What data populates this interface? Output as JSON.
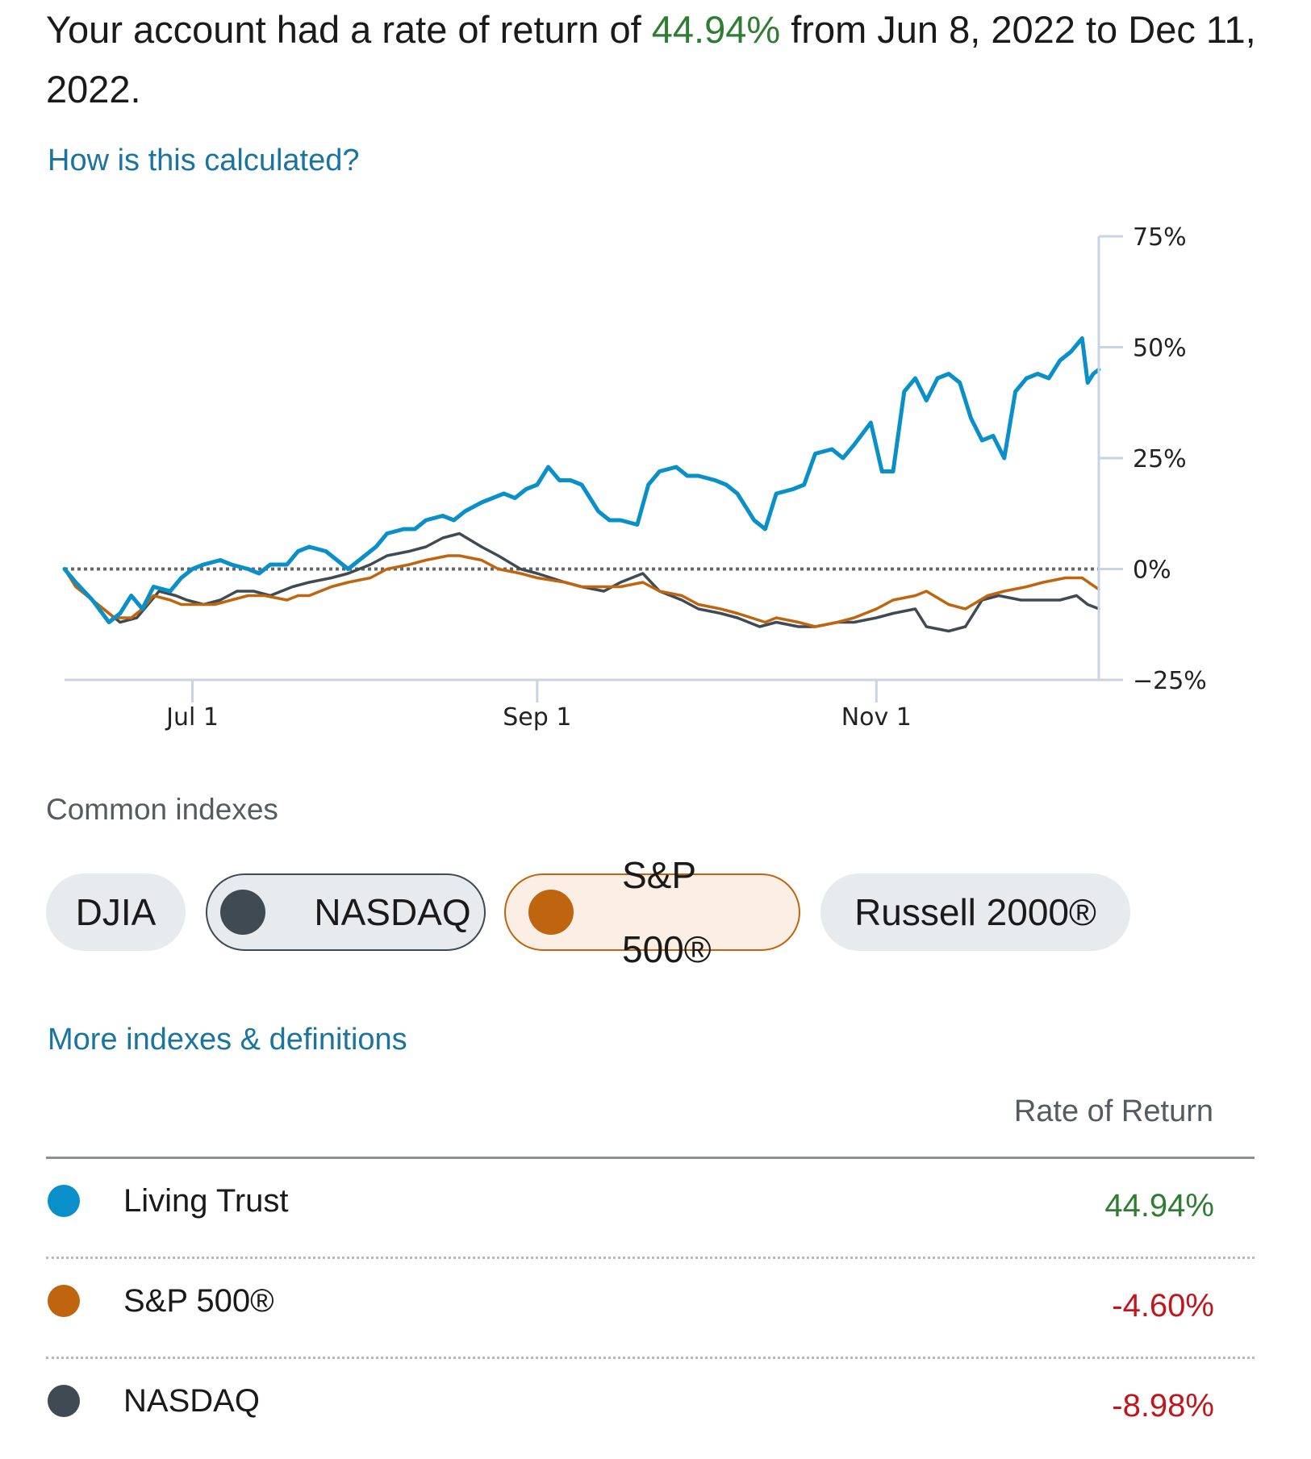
{
  "summary": {
    "prefix": "Your account had a rate of return of ",
    "rate": "44.94%",
    "suffix": " from Jun 8, 2022 to Dec 11, 2022."
  },
  "links": {
    "calculation": "How is this calculated?",
    "more_indexes": "More indexes & definitions"
  },
  "colors": {
    "account": "#0a90c9",
    "sp500": "#c0650f",
    "nasdaq": "#3f4a53",
    "positive": "#2f7d32",
    "negative": "#c2151c",
    "link": "#1a74a0"
  },
  "chart_data": {
    "type": "line",
    "x_ticks": [
      "Jul 1",
      "Sep 1",
      "Nov 1"
    ],
    "y_ticks": [
      "75%",
      "50%",
      "25%",
      "0%",
      "−25%"
    ],
    "ylim": [
      -25,
      75
    ],
    "xlim": [
      "2022-06-08",
      "2022-12-11"
    ],
    "baseline": 0,
    "series": [
      {
        "name": "Living Trust",
        "color": "#0a90c9",
        "points": [
          [
            "2022-06-08",
            0
          ],
          [
            "2022-06-10",
            -3
          ],
          [
            "2022-06-13",
            -7
          ],
          [
            "2022-06-16",
            -12
          ],
          [
            "2022-06-18",
            -10
          ],
          [
            "2022-06-20",
            -6
          ],
          [
            "2022-06-22",
            -9
          ],
          [
            "2022-06-24",
            -4
          ],
          [
            "2022-06-27",
            -5
          ],
          [
            "2022-06-29",
            -2
          ],
          [
            "2022-07-01",
            0
          ],
          [
            "2022-07-03",
            1
          ],
          [
            "2022-07-06",
            2
          ],
          [
            "2022-07-08",
            1
          ],
          [
            "2022-07-11",
            0
          ],
          [
            "2022-07-13",
            -1
          ],
          [
            "2022-07-15",
            1
          ],
          [
            "2022-07-18",
            1
          ],
          [
            "2022-07-20",
            4
          ],
          [
            "2022-07-22",
            5
          ],
          [
            "2022-07-25",
            4
          ],
          [
            "2022-07-27",
            2
          ],
          [
            "2022-07-29",
            0
          ],
          [
            "2022-08-01",
            3
          ],
          [
            "2022-08-03",
            5
          ],
          [
            "2022-08-05",
            8
          ],
          [
            "2022-08-08",
            9
          ],
          [
            "2022-08-10",
            9
          ],
          [
            "2022-08-12",
            11
          ],
          [
            "2022-08-15",
            12
          ],
          [
            "2022-08-17",
            11
          ],
          [
            "2022-08-19",
            13
          ],
          [
            "2022-08-22",
            15
          ],
          [
            "2022-08-24",
            16
          ],
          [
            "2022-08-26",
            17
          ],
          [
            "2022-08-28",
            16
          ],
          [
            "2022-08-30",
            18
          ],
          [
            "2022-09-01",
            19
          ],
          [
            "2022-09-03",
            23
          ],
          [
            "2022-09-05",
            20
          ],
          [
            "2022-09-07",
            20
          ],
          [
            "2022-09-09",
            19
          ],
          [
            "2022-09-12",
            13
          ],
          [
            "2022-09-14",
            11
          ],
          [
            "2022-09-16",
            11
          ],
          [
            "2022-09-19",
            10
          ],
          [
            "2022-09-21",
            19
          ],
          [
            "2022-09-23",
            22
          ],
          [
            "2022-09-26",
            23
          ],
          [
            "2022-09-28",
            21
          ],
          [
            "2022-09-30",
            21
          ],
          [
            "2022-10-03",
            20
          ],
          [
            "2022-10-05",
            19
          ],
          [
            "2022-10-07",
            17
          ],
          [
            "2022-10-10",
            11
          ],
          [
            "2022-10-12",
            9
          ],
          [
            "2022-10-14",
            17
          ],
          [
            "2022-10-17",
            18
          ],
          [
            "2022-10-19",
            19
          ],
          [
            "2022-10-21",
            26
          ],
          [
            "2022-10-24",
            27
          ],
          [
            "2022-10-26",
            25
          ],
          [
            "2022-10-28",
            28
          ],
          [
            "2022-10-31",
            33
          ],
          [
            "2022-11-02",
            22
          ],
          [
            "2022-11-04",
            22
          ],
          [
            "2022-11-06",
            40
          ],
          [
            "2022-11-08",
            43
          ],
          [
            "2022-11-10",
            38
          ],
          [
            "2022-11-12",
            43
          ],
          [
            "2022-11-14",
            44
          ],
          [
            "2022-11-16",
            42
          ],
          [
            "2022-11-18",
            34
          ],
          [
            "2022-11-20",
            29
          ],
          [
            "2022-11-22",
            30
          ],
          [
            "2022-11-24",
            25
          ],
          [
            "2022-11-26",
            40
          ],
          [
            "2022-11-28",
            43
          ],
          [
            "2022-11-30",
            44
          ],
          [
            "2022-12-02",
            43
          ],
          [
            "2022-12-04",
            47
          ],
          [
            "2022-12-06",
            49
          ],
          [
            "2022-12-08",
            52
          ],
          [
            "2022-12-09",
            42
          ],
          [
            "2022-12-10",
            44
          ],
          [
            "2022-12-11",
            44.94
          ]
        ]
      },
      {
        "name": "S&P 500®",
        "color": "#c0650f",
        "points": [
          [
            "2022-06-08",
            0
          ],
          [
            "2022-06-10",
            -4
          ],
          [
            "2022-06-13",
            -7
          ],
          [
            "2022-06-15",
            -9
          ],
          [
            "2022-06-17",
            -11
          ],
          [
            "2022-06-20",
            -11
          ],
          [
            "2022-06-22",
            -9
          ],
          [
            "2022-06-24",
            -6
          ],
          [
            "2022-06-27",
            -7
          ],
          [
            "2022-06-29",
            -8
          ],
          [
            "2022-07-01",
            -8
          ],
          [
            "2022-07-05",
            -8
          ],
          [
            "2022-07-08",
            -7
          ],
          [
            "2022-07-11",
            -6
          ],
          [
            "2022-07-14",
            -6
          ],
          [
            "2022-07-18",
            -7
          ],
          [
            "2022-07-20",
            -6
          ],
          [
            "2022-07-22",
            -6
          ],
          [
            "2022-07-26",
            -4
          ],
          [
            "2022-07-29",
            -3
          ],
          [
            "2022-08-02",
            -2
          ],
          [
            "2022-08-05",
            0
          ],
          [
            "2022-08-09",
            1
          ],
          [
            "2022-08-12",
            2
          ],
          [
            "2022-08-16",
            3
          ],
          [
            "2022-08-18",
            3
          ],
          [
            "2022-08-22",
            2
          ],
          [
            "2022-08-25",
            0
          ],
          [
            "2022-08-29",
            -1
          ],
          [
            "2022-09-01",
            -2
          ],
          [
            "2022-09-06",
            -3
          ],
          [
            "2022-09-09",
            -4
          ],
          [
            "2022-09-13",
            -4
          ],
          [
            "2022-09-16",
            -4
          ],
          [
            "2022-09-20",
            -3
          ],
          [
            "2022-09-23",
            -5
          ],
          [
            "2022-09-27",
            -6
          ],
          [
            "2022-09-30",
            -8
          ],
          [
            "2022-10-04",
            -9
          ],
          [
            "2022-10-07",
            -10
          ],
          [
            "2022-10-12",
            -12
          ],
          [
            "2022-10-14",
            -11
          ],
          [
            "2022-10-18",
            -12
          ],
          [
            "2022-10-21",
            -13
          ],
          [
            "2022-10-25",
            -12
          ],
          [
            "2022-10-28",
            -11
          ],
          [
            "2022-11-01",
            -9
          ],
          [
            "2022-11-04",
            -7
          ],
          [
            "2022-11-08",
            -6
          ],
          [
            "2022-11-10",
            -5
          ],
          [
            "2022-11-14",
            -8
          ],
          [
            "2022-11-17",
            -9
          ],
          [
            "2022-11-21",
            -6
          ],
          [
            "2022-11-24",
            -5
          ],
          [
            "2022-11-28",
            -4
          ],
          [
            "2022-12-01",
            -3
          ],
          [
            "2022-12-05",
            -2
          ],
          [
            "2022-12-08",
            -2
          ],
          [
            "2022-12-11",
            -4.6
          ]
        ]
      },
      {
        "name": "NASDAQ",
        "color": "#3f4a53",
        "points": [
          [
            "2022-06-08",
            0
          ],
          [
            "2022-06-10",
            -3
          ],
          [
            "2022-06-13",
            -7
          ],
          [
            "2022-06-16",
            -10
          ],
          [
            "2022-06-18",
            -12
          ],
          [
            "2022-06-21",
            -11
          ],
          [
            "2022-06-23",
            -8
          ],
          [
            "2022-06-25",
            -5
          ],
          [
            "2022-06-28",
            -6
          ],
          [
            "2022-06-30",
            -7
          ],
          [
            "2022-07-03",
            -8
          ],
          [
            "2022-07-06",
            -7
          ],
          [
            "2022-07-09",
            -5
          ],
          [
            "2022-07-12",
            -5
          ],
          [
            "2022-07-15",
            -6
          ],
          [
            "2022-07-19",
            -4
          ],
          [
            "2022-07-22",
            -3
          ],
          [
            "2022-07-26",
            -2
          ],
          [
            "2022-07-29",
            -1
          ],
          [
            "2022-08-02",
            1
          ],
          [
            "2022-08-05",
            3
          ],
          [
            "2022-08-09",
            4
          ],
          [
            "2022-08-12",
            5
          ],
          [
            "2022-08-15",
            7
          ],
          [
            "2022-08-18",
            8
          ],
          [
            "2022-08-22",
            5
          ],
          [
            "2022-08-25",
            3
          ],
          [
            "2022-08-29",
            0
          ],
          [
            "2022-09-01",
            -1
          ],
          [
            "2022-09-06",
            -3
          ],
          [
            "2022-09-09",
            -4
          ],
          [
            "2022-09-13",
            -5
          ],
          [
            "2022-09-16",
            -3
          ],
          [
            "2022-09-20",
            -1
          ],
          [
            "2022-09-23",
            -5
          ],
          [
            "2022-09-27",
            -7
          ],
          [
            "2022-09-30",
            -9
          ],
          [
            "2022-10-04",
            -10
          ],
          [
            "2022-10-07",
            -11
          ],
          [
            "2022-10-11",
            -13
          ],
          [
            "2022-10-14",
            -12
          ],
          [
            "2022-10-18",
            -13
          ],
          [
            "2022-10-21",
            -13
          ],
          [
            "2022-10-25",
            -12
          ],
          [
            "2022-10-28",
            -12
          ],
          [
            "2022-11-01",
            -11
          ],
          [
            "2022-11-04",
            -10
          ],
          [
            "2022-11-08",
            -9
          ],
          [
            "2022-11-10",
            -13
          ],
          [
            "2022-11-14",
            -14
          ],
          [
            "2022-11-17",
            -13
          ],
          [
            "2022-11-20",
            -7
          ],
          [
            "2022-11-23",
            -6
          ],
          [
            "2022-11-27",
            -7
          ],
          [
            "2022-12-01",
            -7
          ],
          [
            "2022-12-04",
            -7
          ],
          [
            "2022-12-07",
            -6
          ],
          [
            "2022-12-09",
            -8
          ],
          [
            "2022-12-11",
            -8.98
          ]
        ]
      }
    ]
  },
  "indexes": {
    "title": "Common indexes",
    "chips": [
      {
        "label": "DJIA",
        "selected": false
      },
      {
        "label": "NASDAQ",
        "selected": true,
        "color": "#3f4a53"
      },
      {
        "label": "S&P 500®",
        "selected": true,
        "color": "#c0650f"
      },
      {
        "label": "Russell 2000®",
        "selected": false
      }
    ]
  },
  "returns_table": {
    "header": "Rate of Return",
    "rows": [
      {
        "name": "Living Trust",
        "value": "44.94%",
        "color": "#0a90c9",
        "sign": "positive"
      },
      {
        "name": "S&P 500®",
        "value": "-4.60%",
        "color": "#c0650f",
        "sign": "negative"
      },
      {
        "name": "NASDAQ",
        "value": "-8.98%",
        "color": "#3f4a53",
        "sign": "negative"
      }
    ]
  }
}
